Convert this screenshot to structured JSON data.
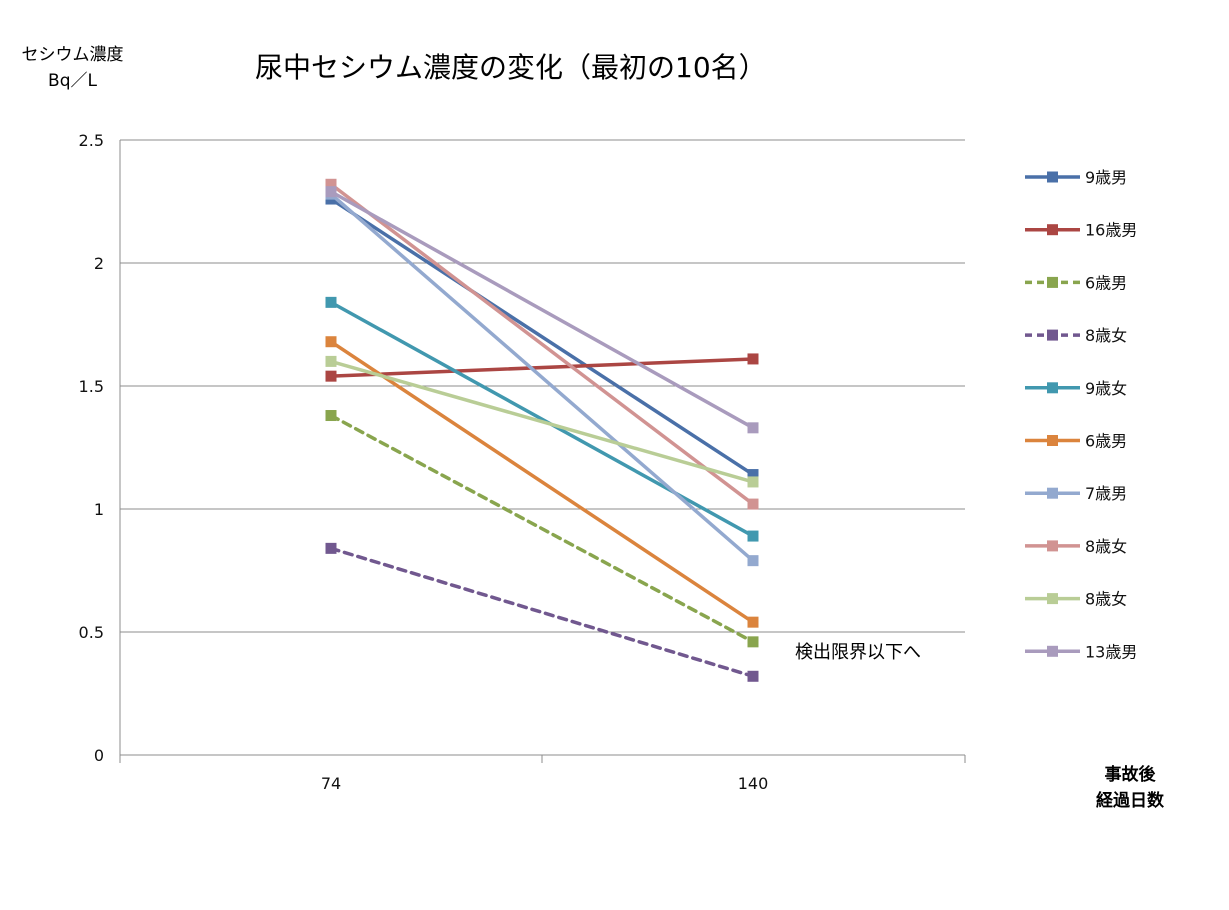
{
  "chart_data": {
    "type": "line",
    "title": "尿中セシウム濃度の変化（最初の10名）",
    "ylabel_line1": "セシウム濃度",
    "ylabel_line2": "Bq／L",
    "xlabel_line1": "事故後",
    "xlabel_line2": "経過日数",
    "annotation": "検出限界以下へ",
    "x": [
      "74",
      "140"
    ],
    "ylim": [
      0,
      2.5
    ],
    "yticks": [
      "0",
      "0.5",
      "1",
      "1.5",
      "2",
      "2.5"
    ],
    "grid": true,
    "legend_position": "right",
    "series": [
      {
        "name": "9歳男",
        "color": "#4a70a8",
        "dashed": false,
        "values": [
          2.26,
          1.14
        ]
      },
      {
        "name": "16歳男",
        "color": "#ab4643",
        "dashed": false,
        "values": [
          1.54,
          1.61
        ]
      },
      {
        "name": "6歳男",
        "color": "#89a54e",
        "dashed": true,
        "values": [
          1.38,
          0.46
        ]
      },
      {
        "name": "8歳女",
        "color": "#71588f",
        "dashed": true,
        "values": [
          0.84,
          0.32
        ]
      },
      {
        "name": "9歳女",
        "color": "#4198af",
        "dashed": false,
        "values": [
          1.84,
          0.89
        ]
      },
      {
        "name": "6歳男",
        "color": "#db843d",
        "dashed": false,
        "values": [
          1.68,
          0.54
        ]
      },
      {
        "name": "7歳男",
        "color": "#93a9cf",
        "dashed": false,
        "values": [
          2.28,
          0.79
        ]
      },
      {
        "name": "8歳女",
        "color": "#d19392",
        "dashed": false,
        "values": [
          2.32,
          1.02
        ]
      },
      {
        "name": "8歳女",
        "color": "#b9cd96",
        "dashed": false,
        "values": [
          1.6,
          1.11
        ]
      },
      {
        "name": "13歳男",
        "color": "#a99bbd",
        "dashed": false,
        "values": [
          2.29,
          1.33
        ]
      }
    ]
  }
}
